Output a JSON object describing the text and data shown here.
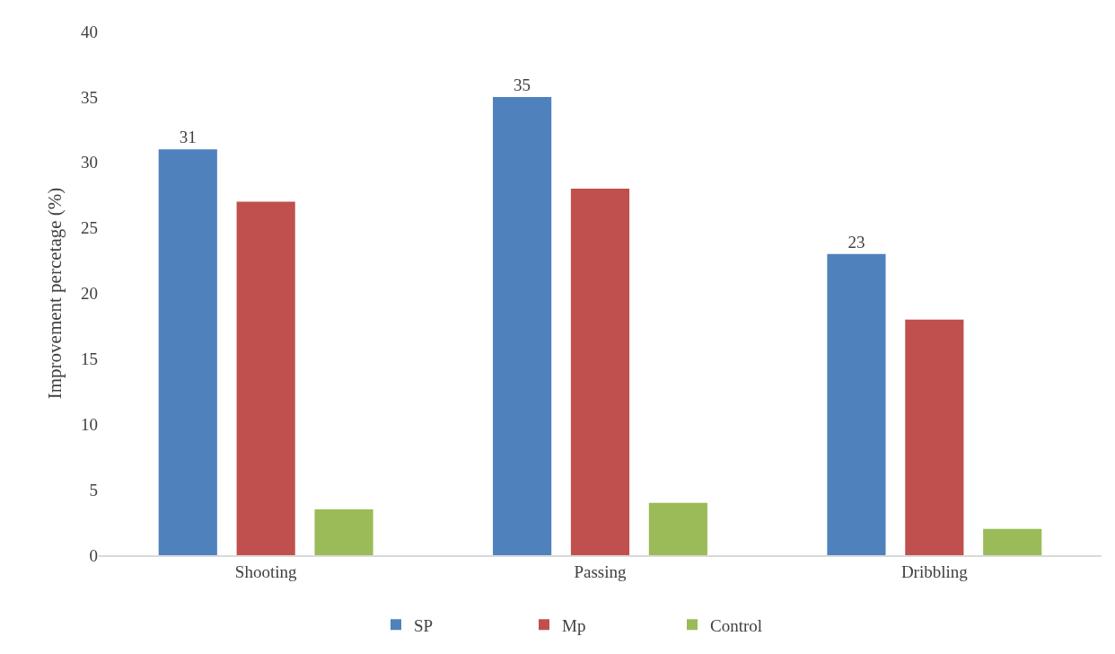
{
  "chart_data": {
    "type": "bar",
    "ylabel": "Improvement percetage (%)",
    "categories": [
      "Shooting",
      "Passing",
      "Dribbling"
    ],
    "series": [
      {
        "name": "SP",
        "color": "#4f81bd",
        "values": [
          31,
          35,
          23
        ],
        "value_labels": [
          "31",
          "35",
          "23"
        ]
      },
      {
        "name": "Mp",
        "color": "#c0504d",
        "values": [
          27,
          28,
          18
        ]
      },
      {
        "name": "Control",
        "color": "#9bbb59",
        "values": [
          3.5,
          4,
          2
        ]
      }
    ],
    "ylim": [
      0,
      40
    ],
    "yticks": [
      0,
      5,
      10,
      15,
      20,
      25,
      30,
      35,
      40
    ],
    "grid": false,
    "legend": "bottom"
  }
}
